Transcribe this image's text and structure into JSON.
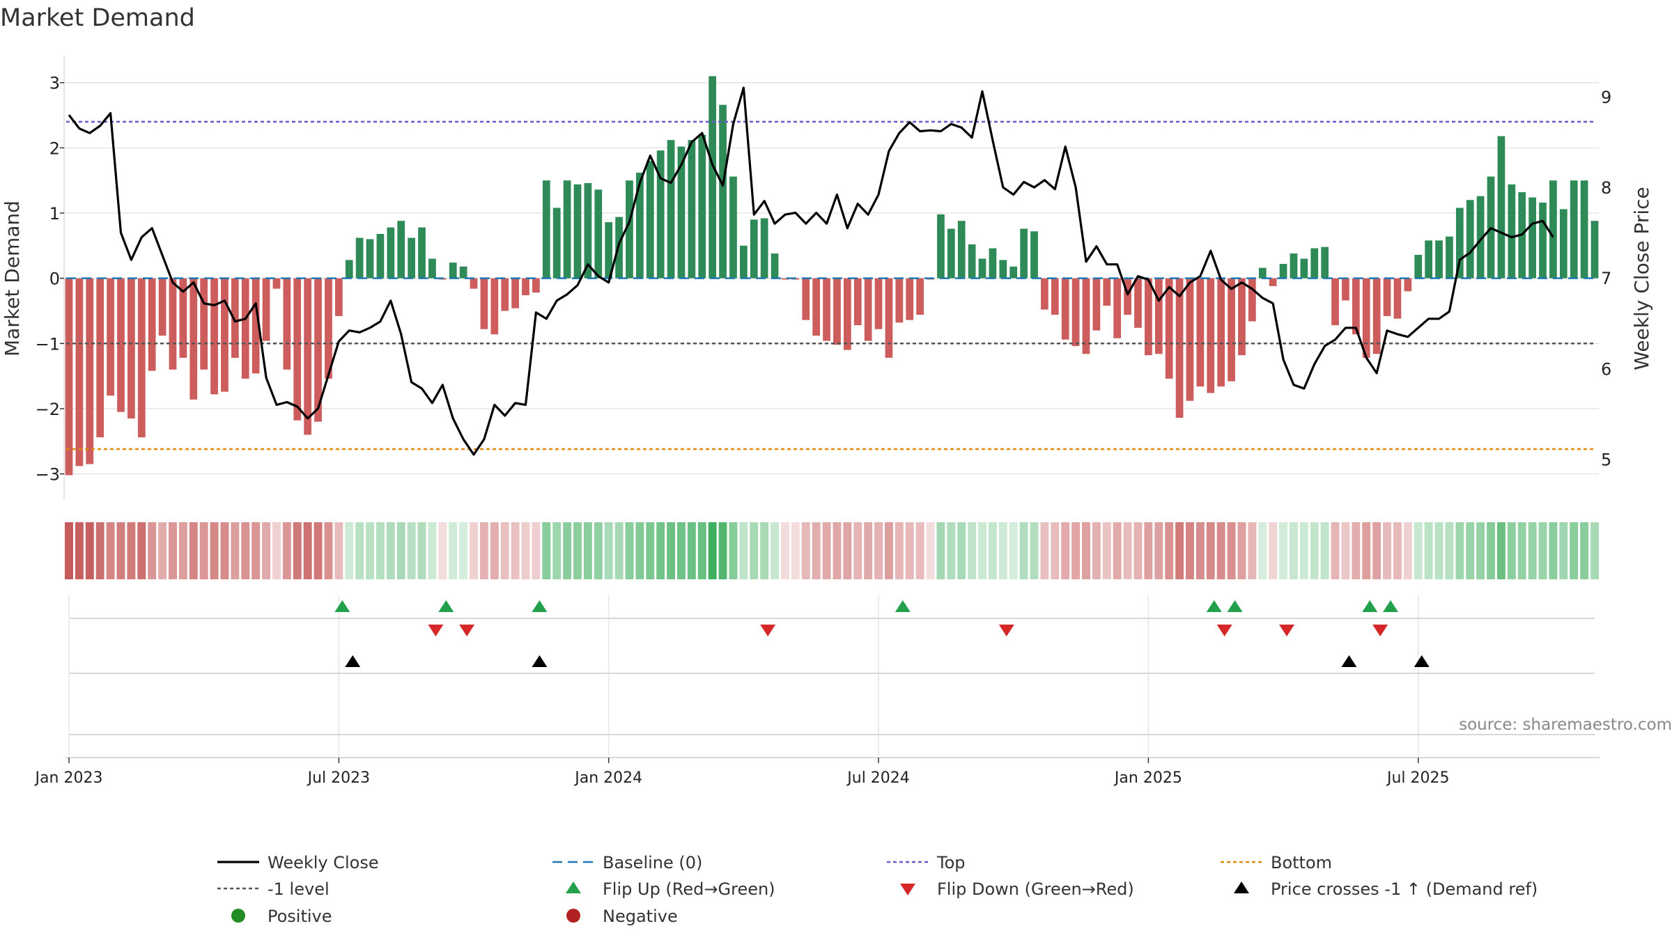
{
  "colors": {
    "positive": "#2e8b57",
    "negative": "#cd5c5c",
    "line": "#000000",
    "baseline": "#1f77b4",
    "top": "#6a5acd",
    "bottom": "#e08a0b",
    "minus1": "#555555",
    "flip_up": "#22a04b",
    "flip_down": "#d62728",
    "cross": "#000000",
    "legend_positive": "#228b22",
    "legend_negative": "#b22222",
    "grid": "#e5e5e5",
    "source": "#888888"
  },
  "chart_data": {
    "type": "bar+line",
    "title": "Market Demand",
    "ylabel_left": "Market Demand",
    "ylabel_right": "Weekly Close Price",
    "source": "source: sharemaestro.com",
    "x_ticks": [
      "Jan 2023",
      "Jul 2023",
      "Jan 2024",
      "Jul 2024",
      "Jan 2025",
      "Jul 2025"
    ],
    "x_tick_weeks": [
      1,
      27,
      53,
      79,
      105,
      131
    ],
    "ylim_left": [
      -3.4,
      3.2
    ],
    "yticks_left": [
      "3",
      "2",
      "1",
      "0",
      "−1",
      "−2",
      "−3"
    ],
    "yticks_left_values": [
      3,
      2,
      1,
      0,
      -1,
      -2,
      -3
    ],
    "ylim_right": [
      4.55,
      9.3
    ],
    "yticks_right": [
      "9",
      "8",
      "7",
      "6",
      "5"
    ],
    "yticks_right_values": [
      9,
      8,
      7,
      6,
      5
    ],
    "reference_lines": {
      "top": 2.4,
      "bottom": -2.62,
      "minus1": -1.0,
      "baseline": 0
    },
    "demand": [
      -3.02,
      -2.88,
      -2.85,
      -2.44,
      -1.8,
      -2.05,
      -2.15,
      -2.44,
      -1.42,
      -0.88,
      -1.4,
      -1.22,
      -1.86,
      -1.4,
      -1.78,
      -1.74,
      -1.22,
      -1.54,
      -1.46,
      -0.96,
      -0.16,
      -1.4,
      -2.18,
      -2.4,
      -2.2,
      -1.54,
      -0.58,
      0.28,
      0.62,
      0.6,
      0.68,
      0.78,
      0.88,
      0.62,
      0.78,
      0.3,
      -0.02,
      0.24,
      0.18,
      -0.16,
      -0.78,
      -0.86,
      -0.5,
      -0.46,
      -0.26,
      -0.22,
      1.5,
      1.08,
      1.5,
      1.44,
      1.46,
      1.36,
      0.86,
      0.94,
      1.5,
      1.62,
      1.8,
      1.96,
      2.12,
      2.02,
      2.12,
      2.2,
      3.1,
      2.66,
      1.56,
      0.5,
      0.9,
      0.92,
      0.38,
      -0.02,
      -0.02,
      -0.64,
      -0.88,
      -0.96,
      -1.02,
      -1.1,
      -0.72,
      -0.96,
      -0.78,
      -1.22,
      -0.68,
      -0.64,
      -0.56,
      -0.02,
      0.98,
      0.76,
      0.88,
      0.52,
      0.3,
      0.46,
      0.28,
      0.18,
      0.76,
      0.72,
      -0.48,
      -0.56,
      -0.94,
      -1.04,
      -1.16,
      -0.8,
      -0.42,
      -0.92,
      -0.56,
      -0.76,
      -1.18,
      -1.16,
      -1.54,
      -2.14,
      -1.88,
      -1.66,
      -1.76,
      -1.66,
      -1.58,
      -1.18,
      -0.66,
      0.16,
      -0.12,
      0.22,
      0.38,
      0.3,
      0.46,
      0.48,
      -0.72,
      -0.34,
      -0.86,
      -1.22,
      -1.16,
      -0.58,
      -0.62,
      -0.2,
      0.36,
      0.58,
      0.58,
      0.64,
      1.08,
      1.2,
      1.26,
      1.56,
      2.18,
      1.44,
      1.32,
      1.24,
      1.16,
      1.5,
      1.06,
      1.5,
      1.5,
      0.88
    ],
    "weekly_close": [
      8.8,
      8.65,
      8.6,
      8.68,
      8.82,
      7.5,
      7.2,
      7.45,
      7.55,
      7.25,
      6.95,
      6.85,
      6.95,
      6.72,
      6.7,
      6.75,
      6.52,
      6.55,
      6.72,
      5.9,
      5.6,
      5.63,
      5.58,
      5.45,
      5.56,
      5.93,
      6.3,
      6.42,
      6.4,
      6.45,
      6.52,
      6.75,
      6.38,
      5.85,
      5.78,
      5.62,
      5.82,
      5.45,
      5.22,
      5.05,
      5.22,
      5.6,
      5.48,
      5.62,
      5.6,
      6.62,
      6.55,
      6.75,
      6.82,
      6.92,
      7.15,
      7.02,
      6.95,
      7.38,
      7.62,
      8.05,
      8.35,
      8.1,
      8.05,
      8.25,
      8.5,
      8.6,
      8.25,
      8.02,
      8.7,
      9.1,
      7.7,
      7.85,
      7.6,
      7.7,
      7.72,
      7.6,
      7.72,
      7.6,
      7.92,
      7.55,
      7.82,
      7.7,
      7.92,
      8.4,
      8.6,
      8.72,
      8.62,
      8.63,
      8.62,
      8.7,
      8.66,
      8.55,
      9.06,
      8.52,
      8.0,
      7.92,
      8.06,
      8.0,
      8.08,
      7.98,
      8.45,
      8.0,
      7.18,
      7.35,
      7.15,
      7.15,
      6.82,
      7.02,
      6.98,
      6.75,
      6.9,
      6.8,
      6.95,
      7.02,
      7.3,
      6.98,
      6.88,
      6.95,
      6.88,
      6.78,
      6.72,
      6.1,
      5.82,
      5.78,
      6.05,
      6.25,
      6.32,
      6.45,
      6.45,
      6.12,
      5.95,
      6.42,
      6.38,
      6.35,
      6.45,
      6.55,
      6.55,
      6.63,
      7.2,
      7.28,
      7.42,
      7.55,
      7.5,
      7.45,
      7.48,
      7.6,
      7.63,
      7.45
    ],
    "flip_up_weeks": [
      27,
      37,
      46,
      81,
      111,
      113,
      126,
      128
    ],
    "flip_down_weeks": [
      36,
      39,
      68,
      91,
      112,
      118,
      127
    ],
    "price_cross_weeks": [
      28,
      46,
      124,
      131
    ]
  },
  "legend": [
    {
      "key": "weekly_close",
      "label": "Weekly Close"
    },
    {
      "key": "baseline",
      "label": "Baseline (0)"
    },
    {
      "key": "top",
      "label": "Top"
    },
    {
      "key": "bottom",
      "label": "Bottom"
    },
    {
      "key": "minus1",
      "label": "-1 level"
    },
    {
      "key": "flip_up",
      "label": "Flip Up (Red→Green)"
    },
    {
      "key": "flip_down",
      "label": "Flip Down (Green→Red)"
    },
    {
      "key": "cross",
      "label": "Price crosses -1 ↑ (Demand ref)"
    },
    {
      "key": "positive",
      "label": "Positive"
    },
    {
      "key": "negative",
      "label": "Negative"
    }
  ]
}
